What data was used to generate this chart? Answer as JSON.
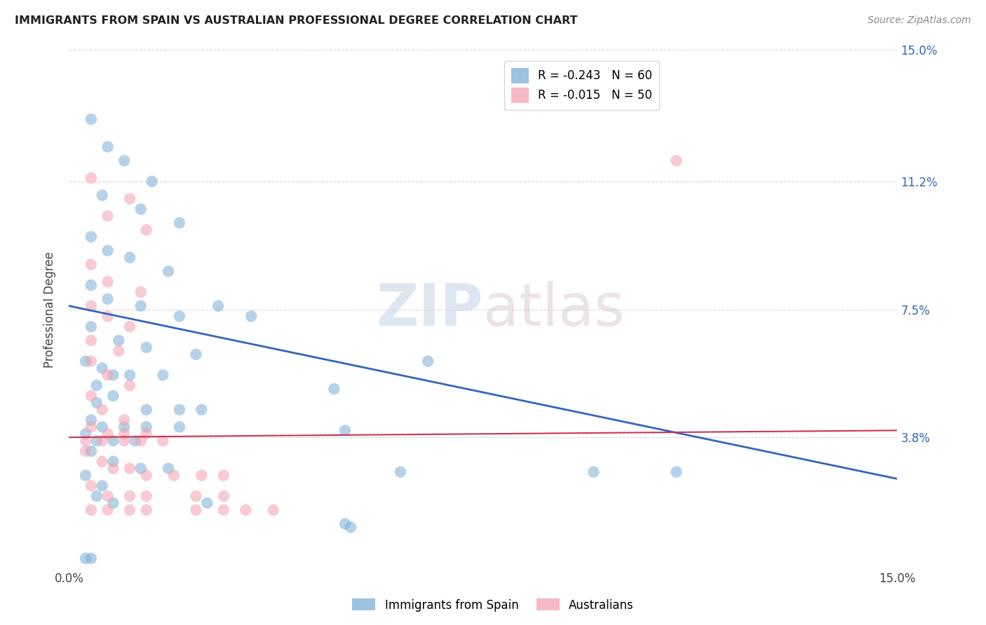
{
  "title": "IMMIGRANTS FROM SPAIN VS AUSTRALIAN PROFESSIONAL DEGREE CORRELATION CHART",
  "source": "Source: ZipAtlas.com",
  "ylabel": "Professional Degree",
  "xlim": [
    0.0,
    0.15
  ],
  "ylim": [
    0.0,
    0.15
  ],
  "ytick_values": [
    0.0,
    0.038,
    0.075,
    0.112,
    0.15
  ],
  "ytick_labels": [
    "",
    "3.8%",
    "7.5%",
    "11.2%",
    "15.0%"
  ],
  "grid_color": "#cccccc",
  "background_color": "#ffffff",
  "watermark_zip": "ZIP",
  "watermark_atlas": "atlas",
  "blue_scatter": [
    [
      0.004,
      0.13
    ],
    [
      0.007,
      0.122
    ],
    [
      0.01,
      0.118
    ],
    [
      0.015,
      0.112
    ],
    [
      0.006,
      0.108
    ],
    [
      0.013,
      0.104
    ],
    [
      0.02,
      0.1
    ],
    [
      0.004,
      0.096
    ],
    [
      0.007,
      0.092
    ],
    [
      0.011,
      0.09
    ],
    [
      0.018,
      0.086
    ],
    [
      0.004,
      0.082
    ],
    [
      0.007,
      0.078
    ],
    [
      0.013,
      0.076
    ],
    [
      0.02,
      0.073
    ],
    [
      0.027,
      0.076
    ],
    [
      0.033,
      0.073
    ],
    [
      0.004,
      0.07
    ],
    [
      0.009,
      0.066
    ],
    [
      0.014,
      0.064
    ],
    [
      0.023,
      0.062
    ],
    [
      0.003,
      0.06
    ],
    [
      0.006,
      0.058
    ],
    [
      0.008,
      0.056
    ],
    [
      0.011,
      0.056
    ],
    [
      0.017,
      0.056
    ],
    [
      0.005,
      0.053
    ],
    [
      0.008,
      0.05
    ],
    [
      0.005,
      0.048
    ],
    [
      0.014,
      0.046
    ],
    [
      0.02,
      0.046
    ],
    [
      0.024,
      0.046
    ],
    [
      0.004,
      0.043
    ],
    [
      0.006,
      0.041
    ],
    [
      0.01,
      0.041
    ],
    [
      0.014,
      0.041
    ],
    [
      0.02,
      0.041
    ],
    [
      0.003,
      0.039
    ],
    [
      0.005,
      0.037
    ],
    [
      0.008,
      0.037
    ],
    [
      0.012,
      0.037
    ],
    [
      0.004,
      0.034
    ],
    [
      0.008,
      0.031
    ],
    [
      0.013,
      0.029
    ],
    [
      0.018,
      0.029
    ],
    [
      0.003,
      0.027
    ],
    [
      0.006,
      0.024
    ],
    [
      0.005,
      0.021
    ],
    [
      0.008,
      0.019
    ],
    [
      0.025,
      0.019
    ],
    [
      0.003,
      0.003
    ],
    [
      0.004,
      0.003
    ],
    [
      0.06,
      0.028
    ],
    [
      0.095,
      0.028
    ],
    [
      0.11,
      0.028
    ],
    [
      0.05,
      0.013
    ],
    [
      0.051,
      0.012
    ],
    [
      0.048,
      0.052
    ],
    [
      0.065,
      0.06
    ],
    [
      0.05,
      0.04
    ]
  ],
  "pink_scatter": [
    [
      0.004,
      0.113
    ],
    [
      0.011,
      0.107
    ],
    [
      0.007,
      0.102
    ],
    [
      0.014,
      0.098
    ],
    [
      0.004,
      0.088
    ],
    [
      0.007,
      0.083
    ],
    [
      0.013,
      0.08
    ],
    [
      0.004,
      0.076
    ],
    [
      0.007,
      0.073
    ],
    [
      0.011,
      0.07
    ],
    [
      0.004,
      0.066
    ],
    [
      0.009,
      0.063
    ],
    [
      0.004,
      0.06
    ],
    [
      0.007,
      0.056
    ],
    [
      0.011,
      0.053
    ],
    [
      0.004,
      0.05
    ],
    [
      0.006,
      0.046
    ],
    [
      0.01,
      0.043
    ],
    [
      0.004,
      0.041
    ],
    [
      0.007,
      0.039
    ],
    [
      0.01,
      0.039
    ],
    [
      0.014,
      0.039
    ],
    [
      0.003,
      0.037
    ],
    [
      0.006,
      0.037
    ],
    [
      0.01,
      0.037
    ],
    [
      0.013,
      0.037
    ],
    [
      0.017,
      0.037
    ],
    [
      0.003,
      0.034
    ],
    [
      0.006,
      0.031
    ],
    [
      0.008,
      0.029
    ],
    [
      0.011,
      0.029
    ],
    [
      0.014,
      0.027
    ],
    [
      0.019,
      0.027
    ],
    [
      0.024,
      0.027
    ],
    [
      0.028,
      0.027
    ],
    [
      0.004,
      0.024
    ],
    [
      0.007,
      0.021
    ],
    [
      0.011,
      0.021
    ],
    [
      0.014,
      0.021
    ],
    [
      0.023,
      0.021
    ],
    [
      0.028,
      0.021
    ],
    [
      0.004,
      0.017
    ],
    [
      0.007,
      0.017
    ],
    [
      0.011,
      0.017
    ],
    [
      0.014,
      0.017
    ],
    [
      0.023,
      0.017
    ],
    [
      0.028,
      0.017
    ],
    [
      0.032,
      0.017
    ],
    [
      0.037,
      0.017
    ],
    [
      0.11,
      0.118
    ]
  ],
  "blue_line_x": [
    0.0,
    0.15
  ],
  "blue_line_y": [
    0.076,
    0.026
  ],
  "pink_line_x": [
    0.0,
    0.15
  ],
  "pink_line_y": [
    0.038,
    0.04
  ],
  "blue_color": "#7aaed6",
  "pink_color": "#f4a0b0",
  "blue_line_color": "#3366bb",
  "pink_line_color": "#cc3355",
  "marker_size": 140,
  "marker_alpha": 0.55,
  "legend_entries": [
    {
      "label": "R = -0.243   N = 60",
      "color": "#7aaed6"
    },
    {
      "label": "R = -0.015   N = 50",
      "color": "#f4a0b0"
    }
  ]
}
